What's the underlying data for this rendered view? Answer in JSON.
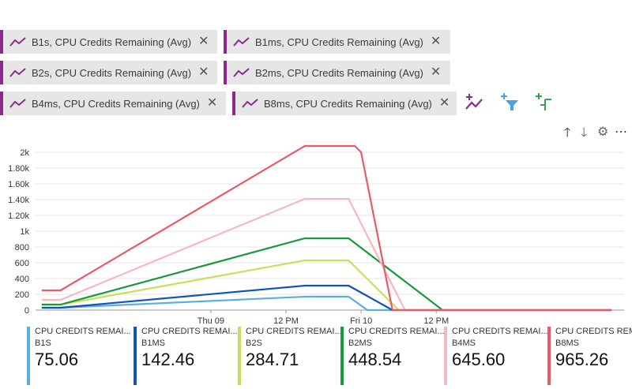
{
  "pills": [
    {
      "label": "B1s, CPU Credits Remaining (Avg)",
      "icon": "line-chart-icon",
      "close_icon": "close-icon"
    },
    {
      "label": "B1ms, CPU Credits Remaining (Avg)",
      "icon": "line-chart-icon",
      "close_icon": "close-icon"
    },
    {
      "label": "B2s, CPU Credits Remaining (Avg)",
      "icon": "line-chart-icon",
      "close_icon": "close-icon"
    },
    {
      "label": "B2ms, CPU Credits Remaining (Avg)",
      "icon": "line-chart-icon",
      "close_icon": "close-icon"
    },
    {
      "label": "B4ms, CPU Credits Remaining (Avg)",
      "icon": "line-chart-icon",
      "close_icon": "close-icon"
    },
    {
      "label": "B8ms, CPU Credits Remaining (Avg)",
      "icon": "line-chart-icon",
      "close_icon": "close-icon"
    }
  ],
  "toolbar": {
    "icons": [
      "add-metric-icon",
      "add-filter-icon",
      "apply-splitting-icon"
    ],
    "controls": [
      "move-up-icon",
      "move-down-icon",
      "settings-icon",
      "more-icon"
    ],
    "glyphs": {
      "up": "🡑",
      "down": "🡓",
      "settings": "⚙",
      "more": "⋯"
    }
  },
  "colors": {
    "accent": "#8a2a8f",
    "pill_bg": "#e6e6e6"
  },
  "legend": [
    {
      "title": "CPU CREDITS REMAI...",
      "sub": "B1S",
      "value": "75.06",
      "color": "#5aaee0"
    },
    {
      "title": "CPU CREDITS REMAI...",
      "sub": "B1MS",
      "value": "142.46",
      "color": "#1254b8"
    },
    {
      "title": "CPU CREDITS REMAI...",
      "sub": "B2S",
      "value": "284.71",
      "color": "#c6e05a"
    },
    {
      "title": "CPU CREDITS REMAI...",
      "sub": "B2MS",
      "value": "448.54",
      "color": "#189a3c"
    },
    {
      "title": "CPU CREDITS REMAI...",
      "sub": "B4MS",
      "value": "645.60",
      "color": "#f5b8c0"
    },
    {
      "title": "CPU CREDITS REMAI...",
      "sub": "B8MS",
      "value": "965.26",
      "color": "#e85a68"
    }
  ],
  "chart_data": {
    "type": "line",
    "grid": true,
    "ylim": [
      0,
      2100
    ],
    "y_ticks": [
      0,
      200,
      400,
      600,
      800,
      1000,
      1200,
      1400,
      1600,
      1800,
      2000
    ],
    "y_tick_labels": [
      "0",
      "200",
      "400",
      "600",
      "800",
      "1k",
      "1.20k",
      "1.40k",
      "1.60k",
      "1.80k",
      "2k"
    ],
    "xlim": [
      -28,
      66
    ],
    "x_ticks": [
      0,
      12,
      24,
      36
    ],
    "x_tick_labels": [
      "Thu 09",
      "12 PM",
      "Fri 10",
      "12 PM"
    ],
    "series": [
      {
        "name": "B1S",
        "color": "#5aaee0",
        "x": [
          -27,
          -24,
          15,
          22,
          25,
          64
        ],
        "y": [
          30,
          30,
          170,
          170,
          0,
          0
        ]
      },
      {
        "name": "B1MS",
        "color": "#1254b8",
        "x": [
          -27,
          -24,
          15,
          22,
          29,
          64
        ],
        "y": [
          30,
          30,
          310,
          310,
          0,
          0
        ]
      },
      {
        "name": "B2S",
        "color": "#c6e05a",
        "x": [
          -27,
          -24,
          15,
          22,
          30,
          64
        ],
        "y": [
          70,
          70,
          630,
          630,
          0,
          0
        ]
      },
      {
        "name": "B2MS",
        "color": "#189a3c",
        "x": [
          -27,
          -24,
          15,
          22,
          37,
          64
        ],
        "y": [
          70,
          70,
          910,
          910,
          0,
          0
        ]
      },
      {
        "name": "B4MS",
        "color": "#f5b8c0",
        "x": [
          -27,
          -24,
          15,
          22,
          31,
          64
        ],
        "y": [
          130,
          130,
          1410,
          1410,
          0,
          0
        ]
      },
      {
        "name": "B8MS",
        "color": "#e85a68",
        "x": [
          -27,
          -24,
          15,
          23,
          24,
          29,
          64
        ],
        "y": [
          250,
          250,
          2080,
          2080,
          2000,
          0,
          0
        ]
      }
    ]
  }
}
